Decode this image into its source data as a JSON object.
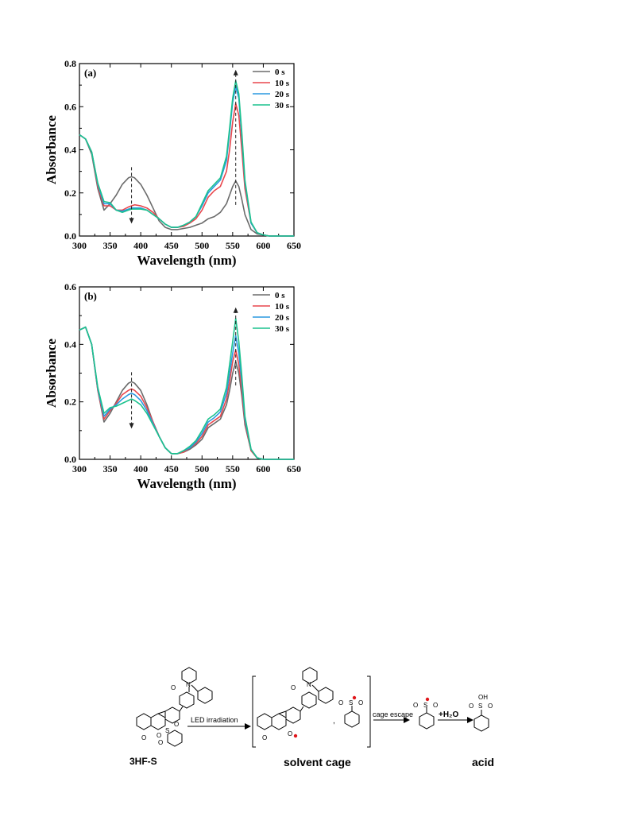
{
  "chart_data": [
    {
      "type": "line",
      "panel_label": "(a)",
      "xlabel": "Wavelength (nm)",
      "ylabel": "Absorbance",
      "xlim": [
        300,
        650
      ],
      "ylim": [
        0,
        0.8
      ],
      "xticks": [
        "300",
        "350",
        "400",
        "450",
        "500",
        "550",
        "600",
        "650"
      ],
      "yticks": [
        "0.0",
        "0.2",
        "0.4",
        "0.6",
        "0.8"
      ],
      "legend_position": "top-right",
      "x": [
        300,
        310,
        320,
        330,
        340,
        350,
        360,
        370,
        380,
        385,
        390,
        400,
        410,
        420,
        430,
        440,
        450,
        460,
        470,
        480,
        490,
        500,
        510,
        520,
        530,
        540,
        545,
        550,
        555,
        560,
        565,
        570,
        580,
        590,
        600,
        610,
        620,
        650
      ],
      "series": [
        {
          "name": "0 s",
          "color": "#6b6b6b",
          "values": [
            0.47,
            0.45,
            0.38,
            0.22,
            0.12,
            0.15,
            0.19,
            0.24,
            0.27,
            0.275,
            0.27,
            0.24,
            0.19,
            0.13,
            0.07,
            0.04,
            0.03,
            0.03,
            0.035,
            0.04,
            0.05,
            0.06,
            0.08,
            0.09,
            0.11,
            0.15,
            0.19,
            0.23,
            0.255,
            0.23,
            0.17,
            0.1,
            0.03,
            0.01,
            0.005,
            0.0,
            0.0,
            0.0
          ]
        },
        {
          "name": "10 s",
          "color": "#e8474d",
          "values": [
            0.47,
            0.45,
            0.39,
            0.23,
            0.14,
            0.14,
            0.12,
            0.12,
            0.135,
            0.14,
            0.145,
            0.14,
            0.13,
            0.11,
            0.08,
            0.055,
            0.04,
            0.04,
            0.045,
            0.06,
            0.08,
            0.12,
            0.18,
            0.21,
            0.23,
            0.3,
            0.4,
            0.53,
            0.615,
            0.56,
            0.4,
            0.22,
            0.06,
            0.015,
            0.005,
            0.0,
            0.0,
            0.0
          ]
        },
        {
          "name": "20 s",
          "color": "#2a98e0",
          "values": [
            0.47,
            0.45,
            0.39,
            0.24,
            0.15,
            0.15,
            0.12,
            0.115,
            0.125,
            0.13,
            0.13,
            0.13,
            0.12,
            0.1,
            0.08,
            0.055,
            0.04,
            0.04,
            0.05,
            0.065,
            0.09,
            0.14,
            0.2,
            0.23,
            0.26,
            0.35,
            0.48,
            0.62,
            0.695,
            0.64,
            0.46,
            0.25,
            0.06,
            0.015,
            0.005,
            0.0,
            0.0,
            0.0
          ]
        },
        {
          "name": "30 s",
          "color": "#1cc28e",
          "values": [
            0.47,
            0.45,
            0.39,
            0.245,
            0.16,
            0.155,
            0.12,
            0.11,
            0.12,
            0.125,
            0.125,
            0.125,
            0.12,
            0.1,
            0.08,
            0.055,
            0.04,
            0.04,
            0.05,
            0.065,
            0.09,
            0.15,
            0.21,
            0.24,
            0.27,
            0.37,
            0.5,
            0.64,
            0.72,
            0.66,
            0.48,
            0.26,
            0.065,
            0.015,
            0.005,
            0.0,
            0.0,
            0.0
          ]
        }
      ]
    },
    {
      "type": "line",
      "panel_label": "(b)",
      "xlabel": "Wavelength (nm)",
      "ylabel": "Absorbance",
      "xlim": [
        300,
        650
      ],
      "ylim": [
        0,
        0.6
      ],
      "xticks": [
        "300",
        "350",
        "400",
        "450",
        "500",
        "550",
        "600",
        "650"
      ],
      "yticks": [
        "0.0",
        "0.2",
        "0.4",
        "0.6"
      ],
      "legend_position": "top-right",
      "x": [
        300,
        310,
        320,
        330,
        340,
        350,
        360,
        370,
        380,
        385,
        390,
        400,
        410,
        420,
        430,
        440,
        450,
        460,
        470,
        480,
        490,
        500,
        510,
        520,
        530,
        540,
        545,
        550,
        555,
        560,
        565,
        570,
        580,
        590,
        600,
        610,
        620,
        650
      ],
      "series": [
        {
          "name": "0 s",
          "color": "#6b6b6b",
          "values": [
            0.45,
            0.46,
            0.4,
            0.24,
            0.13,
            0.16,
            0.2,
            0.24,
            0.265,
            0.27,
            0.265,
            0.24,
            0.19,
            0.13,
            0.08,
            0.04,
            0.02,
            0.02,
            0.025,
            0.035,
            0.05,
            0.07,
            0.11,
            0.125,
            0.14,
            0.19,
            0.24,
            0.3,
            0.34,
            0.3,
            0.22,
            0.12,
            0.03,
            0.005,
            0.0,
            0.0,
            0.0,
            0.0
          ]
        },
        {
          "name": "10 s",
          "color": "#e8474d",
          "values": [
            0.45,
            0.46,
            0.4,
            0.24,
            0.14,
            0.17,
            0.195,
            0.225,
            0.24,
            0.245,
            0.24,
            0.22,
            0.18,
            0.13,
            0.08,
            0.04,
            0.02,
            0.02,
            0.025,
            0.04,
            0.055,
            0.08,
            0.12,
            0.135,
            0.15,
            0.21,
            0.27,
            0.34,
            0.38,
            0.33,
            0.24,
            0.13,
            0.03,
            0.005,
            0.0,
            0.0,
            0.0,
            0.0
          ]
        },
        {
          "name": "20 s",
          "color": "#2a98e0",
          "values": [
            0.45,
            0.46,
            0.4,
            0.245,
            0.15,
            0.175,
            0.19,
            0.21,
            0.225,
            0.23,
            0.225,
            0.205,
            0.17,
            0.125,
            0.08,
            0.04,
            0.02,
            0.02,
            0.03,
            0.04,
            0.06,
            0.09,
            0.13,
            0.145,
            0.165,
            0.23,
            0.3,
            0.37,
            0.43,
            0.37,
            0.27,
            0.14,
            0.035,
            0.005,
            0.0,
            0.0,
            0.0,
            0.0
          ]
        },
        {
          "name": "30 s",
          "color": "#1cc28e",
          "values": [
            0.45,
            0.46,
            0.4,
            0.25,
            0.16,
            0.18,
            0.185,
            0.195,
            0.205,
            0.21,
            0.205,
            0.19,
            0.16,
            0.12,
            0.08,
            0.04,
            0.02,
            0.02,
            0.03,
            0.045,
            0.065,
            0.1,
            0.14,
            0.155,
            0.175,
            0.25,
            0.33,
            0.41,
            0.49,
            0.41,
            0.29,
            0.15,
            0.035,
            0.005,
            0.0,
            0.0,
            0.0,
            0.0
          ]
        }
      ]
    }
  ],
  "scheme": {
    "reactant_label": "3HF-S",
    "arrow1_label": "LED irradiation",
    "cage_label": "solvent cage",
    "arrow2_label": "cage escape",
    "arrow3_label": "+H₂O",
    "product_label": "acid",
    "atoms": {
      "O": "O",
      "N": "N",
      "S": "S",
      "OH": "OH",
      "comma": ","
    },
    "radical_color": "#e0161b"
  }
}
